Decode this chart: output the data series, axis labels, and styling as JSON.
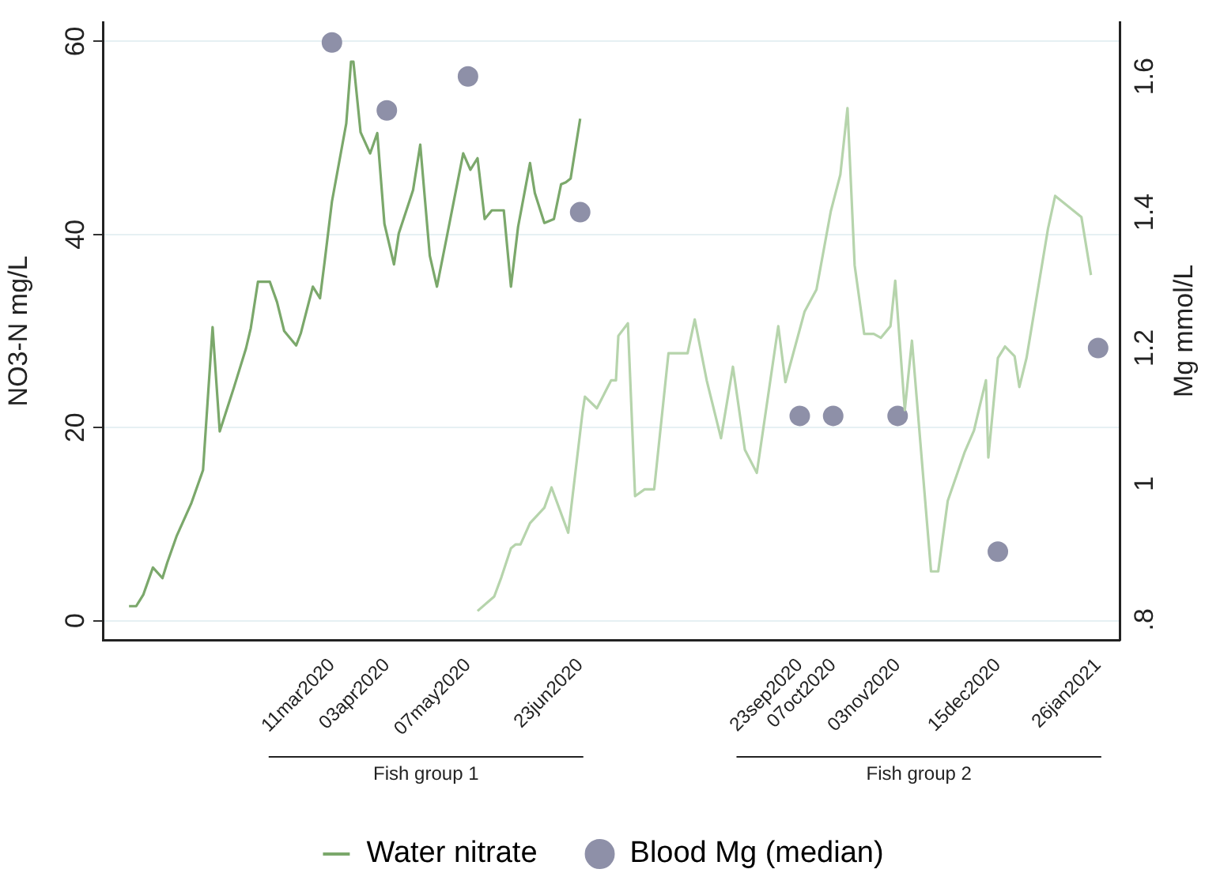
{
  "chart_data": {
    "type": "line",
    "ylabel": "NO3-N mg/L",
    "y2label": "Mg mmol/L",
    "xlim": [
      "2019-12-06",
      "2021-02-04"
    ],
    "xticks": [
      {
        "value": "2020-03-11",
        "label": "11mar2020"
      },
      {
        "value": "2020-04-03",
        "label": "03apr2020"
      },
      {
        "value": "2020-05-07",
        "label": "07may2020"
      },
      {
        "value": "2020-06-23",
        "label": "23jun2020"
      },
      {
        "value": "2020-09-23",
        "label": "23sep2020"
      },
      {
        "value": "2020-10-07",
        "label": "07oct2020"
      },
      {
        "value": "2020-11-03",
        "label": "03nov2020"
      },
      {
        "value": "2020-12-15",
        "label": "15dec2020"
      },
      {
        "value": "2021-01-26",
        "label": "26jan2021"
      }
    ],
    "ylim": [
      -2,
      62
    ],
    "yticks": [
      0,
      20,
      40,
      60
    ],
    "y2lim": [
      0.77,
      1.68
    ],
    "y2ticks": [
      {
        "value": 0.8,
        "label": ".8"
      },
      1,
      1.2,
      1.4,
      1.6
    ],
    "grid": "y",
    "legend": "bottom",
    "annotations": [
      "Fish group 1",
      "Fish group 2"
    ],
    "series": [
      {
        "name": "Water nitrate",
        "type": "line",
        "color": "#7ba86b",
        "x": [
          "2019-12-17",
          "2019-12-20",
          "2019-12-23",
          "2019-12-27",
          "2019-12-31",
          "2020-01-02",
          "2020-01-06",
          "2020-01-12",
          "2020-01-17",
          "2020-01-21",
          "2020-01-24",
          "2020-01-30",
          "2020-02-04",
          "2020-02-06",
          "2020-02-09",
          "2020-02-14",
          "2020-02-17",
          "2020-02-20",
          "2020-02-25",
          "2020-02-27",
          "2020-03-03",
          "2020-03-06",
          "2020-03-08",
          "2020-03-11",
          "2020-03-17",
          "2020-03-19",
          "2020-03-20",
          "2020-03-23",
          "2020-03-27",
          "2020-03-30",
          "2020-04-02",
          "2020-04-06",
          "2020-04-08",
          "2020-04-14",
          "2020-04-17",
          "2020-04-21",
          "2020-04-24",
          "2020-04-28",
          "2020-05-05",
          "2020-05-08",
          "2020-05-11",
          "2020-05-14",
          "2020-05-17",
          "2020-05-22",
          "2020-05-25",
          "2020-05-28",
          "2020-06-02",
          "2020-06-04",
          "2020-06-08",
          "2020-06-12",
          "2020-06-15",
          "2020-06-17",
          "2020-06-19",
          "2020-06-23"
        ],
        "values": [
          1.5,
          1.5,
          2.7,
          5.5,
          4.4,
          6.0,
          8.8,
          12.1,
          15.6,
          30.4,
          19.6,
          24.2,
          28.2,
          30.3,
          35.1,
          35.1,
          33.0,
          30.0,
          28.5,
          29.8,
          34.6,
          33.4,
          37.3,
          43.4,
          51.5,
          57.9,
          57.9,
          50.6,
          48.4,
          50.5,
          41.1,
          36.9,
          40.1,
          44.6,
          49.3,
          37.8,
          34.6,
          39.6,
          48.4,
          46.7,
          47.9,
          41.6,
          42.5,
          42.5,
          34.6,
          40.8,
          47.4,
          44.3,
          41.2,
          41.6,
          45.2,
          45.4,
          45.8,
          52.0
        ]
      },
      {
        "type": "line",
        "color": "#b6d4ac",
        "x": [
          "2020-05-11",
          "2020-05-18",
          "2020-05-21",
          "2020-05-25",
          "2020-05-27",
          "2020-05-29",
          "2020-06-02",
          "2020-06-08",
          "2020-06-11",
          "2020-06-18",
          "2020-06-24",
          "2020-06-25",
          "2020-06-30",
          "2020-07-06",
          "2020-07-08",
          "2020-07-09",
          "2020-07-13",
          "2020-07-16",
          "2020-07-20",
          "2020-07-24",
          "2020-07-30",
          "2020-08-07",
          "2020-08-10",
          "2020-08-15",
          "2020-08-21",
          "2020-08-26",
          "2020-08-31",
          "2020-09-05",
          "2020-09-14",
          "2020-09-17",
          "2020-09-25",
          "2020-09-30",
          "2020-10-06",
          "2020-10-10",
          "2020-10-13",
          "2020-10-16",
          "2020-10-20",
          "2020-10-24",
          "2020-10-27",
          "2020-10-31",
          "2020-11-02",
          "2020-11-06",
          "2020-11-09",
          "2020-11-17",
          "2020-11-20",
          "2020-11-24",
          "2020-12-01",
          "2020-12-05",
          "2020-12-07",
          "2020-12-10",
          "2020-12-11",
          "2020-12-15",
          "2020-12-18",
          "2020-12-22",
          "2020-12-24",
          "2020-12-27",
          "2021-01-05",
          "2021-01-08",
          "2021-01-19",
          "2021-01-23"
        ],
        "values": [
          1.0,
          2.5,
          4.5,
          7.5,
          7.9,
          7.9,
          10.1,
          11.7,
          13.8,
          9.1,
          21.6,
          23.2,
          22.0,
          24.9,
          24.9,
          29.5,
          30.8,
          12.9,
          13.6,
          13.6,
          27.7,
          27.7,
          31.2,
          24.9,
          18.9,
          26.3,
          17.7,
          15.3,
          30.5,
          24.7,
          32.0,
          34.3,
          42.4,
          46.2,
          53.1,
          36.8,
          29.7,
          29.7,
          29.3,
          30.5,
          35.2,
          21.8,
          29.0,
          5.1,
          5.1,
          12.4,
          17.4,
          19.7,
          21.8,
          24.9,
          16.9,
          27.2,
          28.4,
          27.4,
          24.2,
          27.2,
          40.6,
          44.0,
          41.8,
          35.8
        ]
      },
      {
        "name": "Blood Mg (median)",
        "type": "scatter",
        "axis": "y2",
        "marker": "circle",
        "color": "#8e90a8",
        "x": [
          "2020-03-11",
          "2020-04-03",
          "2020-05-07",
          "2020-06-23",
          "2020-09-23",
          "2020-10-07",
          "2020-11-03",
          "2020-12-15",
          "2021-01-26"
        ],
        "values": [
          1.65,
          1.55,
          1.6,
          1.4,
          1.1,
          1.1,
          1.1,
          0.9,
          1.2
        ]
      }
    ]
  }
}
